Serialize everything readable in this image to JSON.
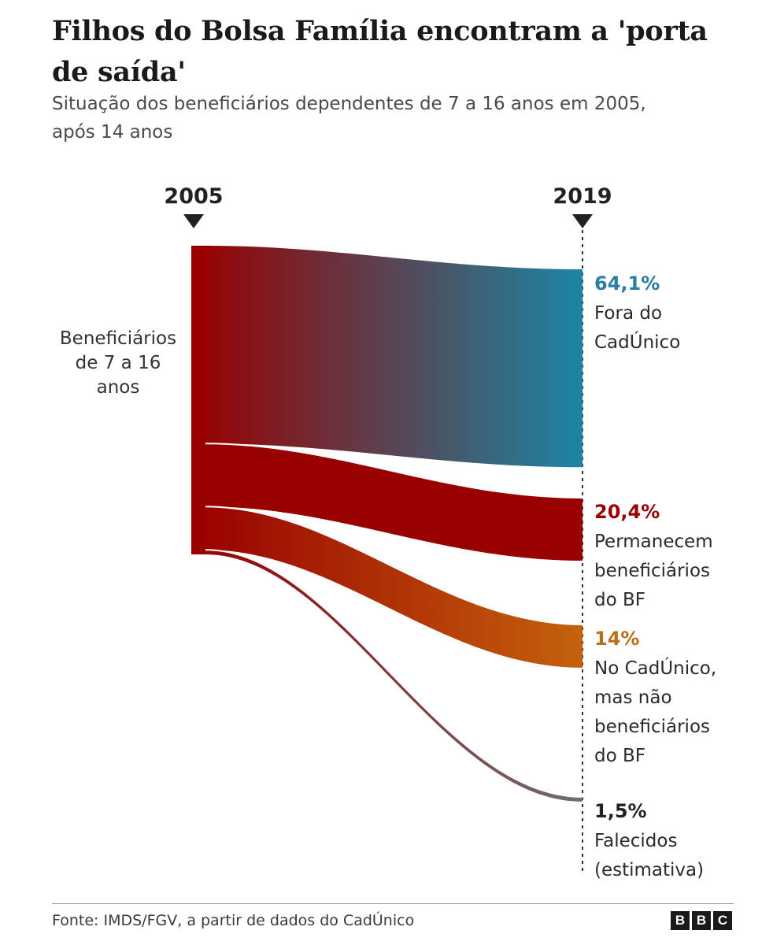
{
  "header": {
    "title": "Filhos do Bolsa Família encontram a 'porta de saída'",
    "subtitle": "Situação dos beneficiários dependentes de 7 a 16 anos em 2005, após 14 anos"
  },
  "footer": {
    "source": "Fonte: IMDS/FGV, a partir de dados do CadÚnico",
    "logo_letters": [
      "B",
      "B",
      "C"
    ]
  },
  "chart_data": {
    "type": "sankey",
    "title": "Filhos do Bolsa Família encontram a 'porta de saída'",
    "subtitle": "Situação dos beneficiários dependentes de 7 a 16 anos em 2005, após 14 anos",
    "years": [
      "2005",
      "2019"
    ],
    "source_node": {
      "lines": [
        "Beneficiários",
        "de 7 a 16",
        "anos"
      ],
      "color": "#990000"
    },
    "flows": [
      {
        "value": 64.1,
        "value_label": "64,1%",
        "label_lines": [
          "Fora do",
          "CadÚnico"
        ],
        "color": "#1b86a4",
        "label_color": "#2a7ea3"
      },
      {
        "value": 20.4,
        "value_label": "20,4%",
        "label_lines": [
          "Permanecem",
          "beneficiários",
          "do BF"
        ],
        "color": "#990000",
        "label_color": "#990000"
      },
      {
        "value": 14,
        "value_label": "14%",
        "label_lines": [
          "No CadÚnico,",
          "mas não",
          "beneficiários",
          "do BF"
        ],
        "color": "#c4620c",
        "label_color": "#b5701c"
      },
      {
        "value": 1.5,
        "value_label": "1,5%",
        "label_lines": [
          "Falecidos",
          "(estimativa)"
        ],
        "color": "#6e6e6e",
        "label_color": "#222222"
      }
    ]
  }
}
